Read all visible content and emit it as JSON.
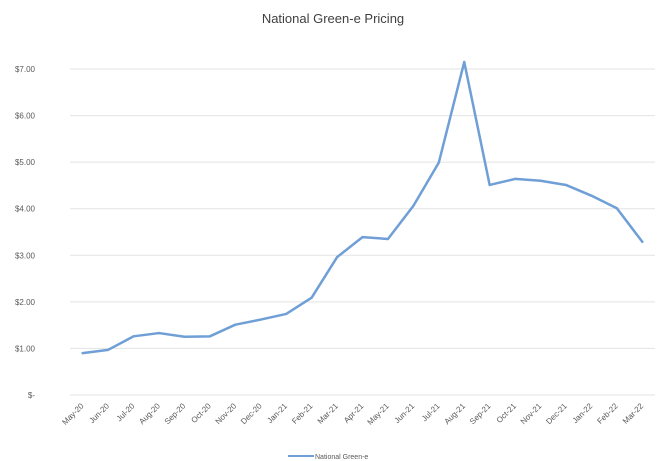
{
  "chart_data": {
    "type": "line",
    "title": "National Green-e Pricing",
    "xlabel": "",
    "ylabel": "",
    "categories": [
      "May-20",
      "Jun-20",
      "Jul-20",
      "Aug-20",
      "Sep-20",
      "Oct-20",
      "Nov-20",
      "Dec-20",
      "Jan-21",
      "Feb-21",
      "Mar-21",
      "Apr-21",
      "May-21",
      "Jun-21",
      "Jul-21",
      "Aug-21",
      "Sep-21",
      "Oct-21",
      "Nov-21",
      "Dec-21",
      "Jan-22",
      "Feb-22",
      "Mar-22"
    ],
    "series": [
      {
        "name": "National Green-e",
        "color": "#6f9fd6",
        "values": [
          0.9,
          0.97,
          1.26,
          1.33,
          1.25,
          1.26,
          1.51,
          1.62,
          1.74,
          2.09,
          2.96,
          3.39,
          3.35,
          4.06,
          4.99,
          7.15,
          4.51,
          4.64,
          4.6,
          4.51,
          4.28,
          4.01,
          3.29
        ]
      }
    ],
    "ylim": [
      0,
      7
    ],
    "yticks": [
      0,
      1,
      2,
      3,
      4,
      5,
      6,
      7
    ],
    "ytick_labels": [
      "$-",
      "$1.00",
      "$2.00",
      "$3.00",
      "$4.00",
      "$5.00",
      "$6.00",
      "$7.00"
    ],
    "grid": true,
    "legend_position": "bottom"
  }
}
